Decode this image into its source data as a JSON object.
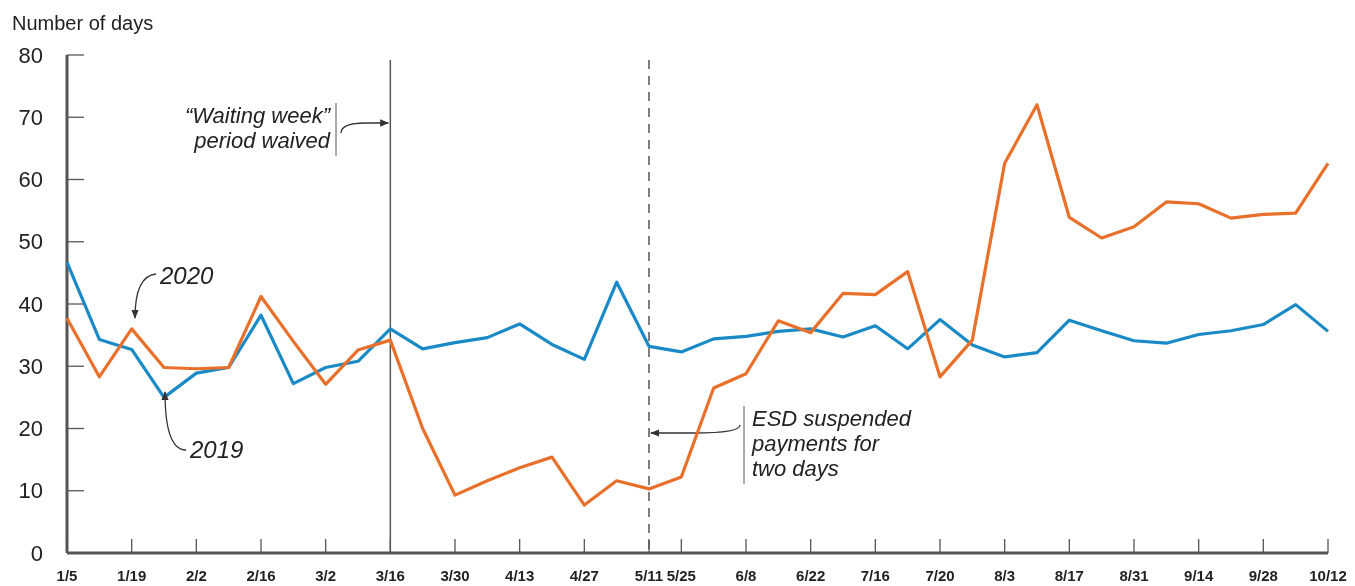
{
  "chart_data": {
    "type": "line",
    "ylabel": "Number of days",
    "categories": [
      "1/5",
      null,
      "1/19",
      null,
      "2/2",
      null,
      "2/16",
      null,
      "3/2",
      null,
      "3/16",
      null,
      "3/30",
      null,
      "4/13",
      null,
      "4/27",
      null,
      "5/11",
      "5/25",
      null,
      "6/8",
      null,
      "6/22",
      null,
      "7/16",
      null,
      "7/20",
      null,
      "8/3",
      null,
      "8/17",
      null,
      "8/31",
      null,
      "9/14",
      null,
      "9/28",
      null,
      "10/12"
    ],
    "ylim": [
      0,
      80
    ],
    "yticks": [
      0,
      10,
      20,
      30,
      40,
      50,
      60,
      70,
      80
    ],
    "grid": false,
    "marker": "none",
    "line_style": "solid",
    "series": [
      {
        "name": "2019",
        "color": "#1a8ac6",
        "values": [
          46.7,
          34.3,
          32.7,
          25,
          28.9,
          29.8,
          38.2,
          27.2,
          29.8,
          30.8,
          36,
          32.8,
          33.8,
          34.6,
          36.8,
          33.5,
          31.1,
          43.5,
          33.2,
          32.3,
          34.4,
          34.8,
          35.6,
          36,
          34.7,
          36.5,
          32.8,
          37.5,
          33.4,
          31.5,
          32.2,
          37.4,
          35.7,
          34.1,
          33.7,
          35.1,
          35.7,
          36.7,
          39.9,
          35.6
        ]
      },
      {
        "name": "2020",
        "color": "#e8702a",
        "values": [
          37.7,
          28.3,
          36,
          29.8,
          29.6,
          29.8,
          41.2,
          34,
          27.1,
          32.6,
          34.2,
          20,
          9.3,
          11.6,
          13.7,
          15.4,
          7.7,
          11.6,
          10.3,
          12.2,
          26.5,
          28.8,
          37.3,
          35.4,
          41.7,
          41.5,
          45.2,
          28.3,
          34.2,
          62.6,
          72,
          53.9,
          50.6,
          52.4,
          56.4,
          56.1,
          53.8,
          54.4,
          54.6,
          62.6
        ]
      }
    ],
    "ref_lines": [
      {
        "axis": "x",
        "value": "3/16",
        "label": "“Waiting week”\nperiod waived",
        "color": "#555555",
        "line_style": "solid"
      },
      {
        "axis": "x",
        "value": "5/11",
        "label": "ESD suspended\npayments for\ntwo days",
        "color": "#555555",
        "line_style": "dashed"
      }
    ]
  }
}
